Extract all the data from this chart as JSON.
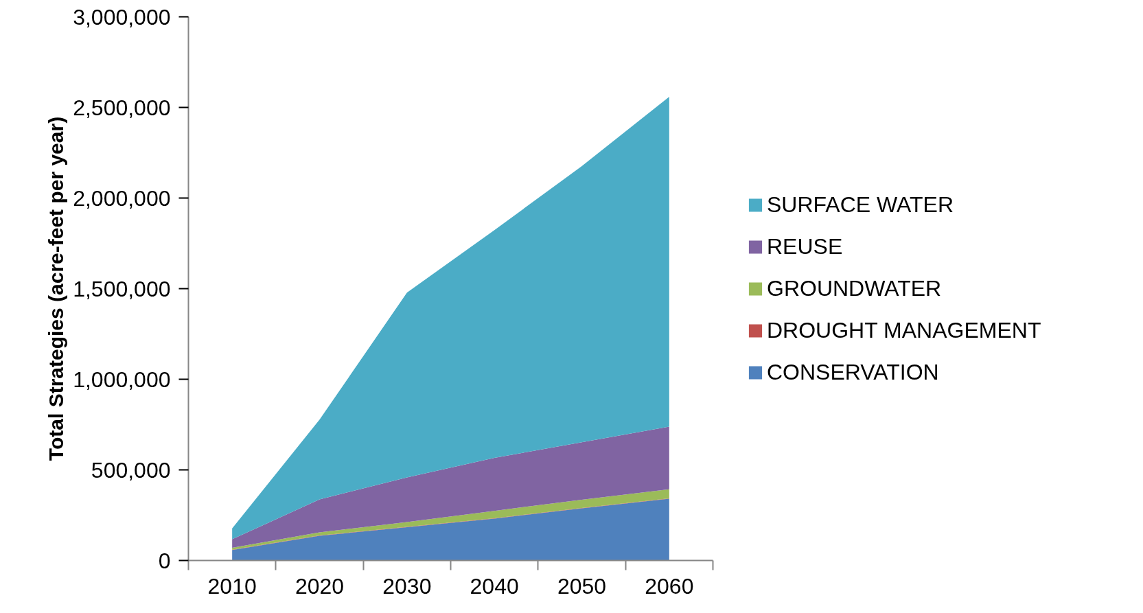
{
  "chart_data": {
    "type": "area",
    "stacked": true,
    "ylabel": "Total Strategies (acre-feet per year)",
    "categories": [
      "2010",
      "2020",
      "2030",
      "2040",
      "2050",
      "2060"
    ],
    "series": [
      {
        "name": "CONSERVATION",
        "color": "#4f81bd",
        "values": [
          58000,
          136000,
          184000,
          231000,
          288000,
          341000
        ]
      },
      {
        "name": "DROUGHT MANAGEMENT",
        "color": "#c0504d",
        "values": [
          2000,
          2000,
          2000,
          2000,
          2000,
          2000
        ]
      },
      {
        "name": "GROUNDWATER",
        "color": "#9bbb59",
        "values": [
          10000,
          17000,
          26000,
          41000,
          45000,
          50000
        ]
      },
      {
        "name": "REUSE",
        "color": "#8064a2",
        "values": [
          47000,
          182000,
          246000,
          292000,
          317000,
          346000
        ]
      },
      {
        "name": "SURFACE WATER",
        "color": "#4bacc6",
        "values": [
          60000,
          440000,
          1020000,
          1257000,
          1524000,
          1820000
        ]
      }
    ],
    "ylim": [
      0,
      3000000
    ],
    "yticks": [
      {
        "value": 0,
        "label": "0"
      },
      {
        "value": 500000,
        "label": "500,000"
      },
      {
        "value": 1000000,
        "label": "1,000,000"
      },
      {
        "value": 1500000,
        "label": "1,500,000"
      },
      {
        "value": 2000000,
        "label": "2,000,000"
      },
      {
        "value": 2500000,
        "label": "2,500,000"
      },
      {
        "value": 3000000,
        "label": "3,000,000"
      }
    ],
    "grid": false,
    "legend": "right"
  }
}
